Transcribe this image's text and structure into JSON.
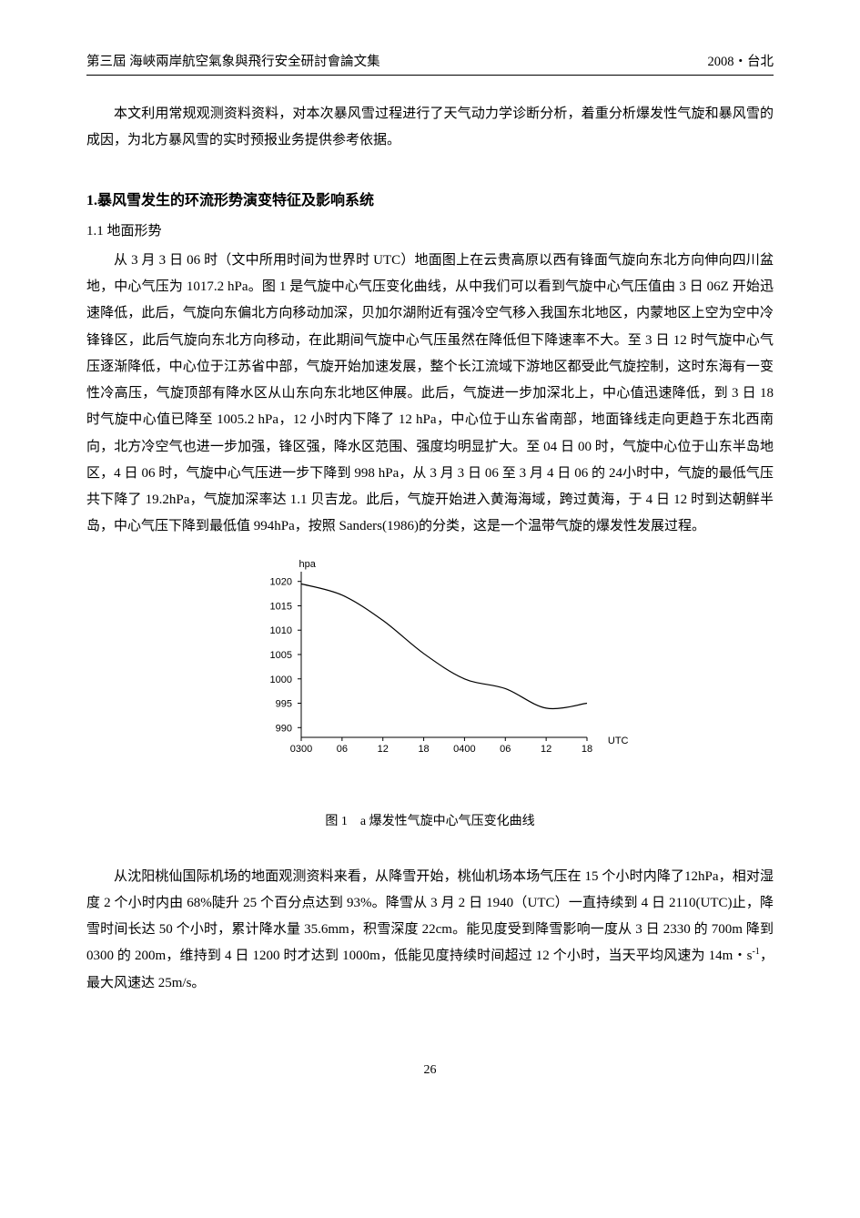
{
  "header": {
    "left": "第三屆 海峽兩岸航空氣象與飛行安全研討會論文集",
    "right": "2008・台北"
  },
  "intro": "本文利用常规观测资料资料，对本次暴风雪过程进行了天气动力学诊断分析，着重分析爆发性气旋和暴风雪的成因，为北方暴风雪的实时预报业务提供参考依据。",
  "section1": {
    "heading": "1.暴风雪发生的环流形势演变特征及影响系统",
    "sub1_label": "1.1 地面形势",
    "body1": "从 3 月 3 日 06 时（文中所用时间为世界时 UTC）地面图上在云贵高原以西有锋面气旋向东北方向伸向四川盆地，中心气压为 1017.2 hPa。图 1 是气旋中心气压变化曲线，从中我们可以看到气旋中心气压值由 3 日 06Z 开始迅速降低，此后，气旋向东偏北方向移动加深，贝加尔湖附近有强冷空气移入我国东北地区，内蒙地区上空为空中冷锋锋区，此后气旋向东北方向移动，在此期间气旋中心气压虽然在降低但下降速率不大。至 3 日 12 时气旋中心气压逐渐降低，中心位于江苏省中部，气旋开始加速发展，整个长江流域下游地区都受此气旋控制，这时东海有一变性冷高压，气旋顶部有降水区从山东向东北地区伸展。此后，气旋进一步加深北上，中心值迅速降低，到 3 日 18 时气旋中心值已降至 1005.2 hPa，12 小时内下降了 12 hPa，中心位于山东省南部，地面锋线走向更趋于东北西南向，北方冷空气也进一步加强，锋区强，降水区范围、强度均明显扩大。至 04 日 00 时，气旋中心位于山东半岛地区，4 日 06 时，气旋中心气压进一步下降到 998 hPa，从 3 月 3 日 06 至 3 月 4 日 06 的 24小时中，气旋的最低气压共下降了 19.2hPa，气旋加深率达 1.1 贝吉龙。此后，气旋开始进入黄海海域，跨过黄海，于 4 日 12 时到达朝鲜半岛，中心气压下降到最低值 994hPa，按照 Sanders(1986)的分类，这是一个温带气旋的爆发性发展过程。"
  },
  "figure1": {
    "caption": "图 1　a 爆发性气旋中心气压变化曲线",
    "y_unit": "hpa",
    "x_unit": "UTC",
    "y_ticks": [
      990,
      995,
      1000,
      1005,
      1010,
      1015,
      1020
    ],
    "x_tick_labels": [
      "0300",
      "06",
      "12",
      "18",
      "0400",
      "06",
      "12",
      "18"
    ],
    "ylim": [
      988,
      1022
    ],
    "series": {
      "points": [
        [
          0,
          1019.5
        ],
        [
          1,
          1017.2
        ],
        [
          2,
          1012
        ],
        [
          3,
          1005.2
        ],
        [
          4,
          1000
        ],
        [
          5,
          998
        ],
        [
          6,
          994
        ],
        [
          7,
          995
        ]
      ],
      "stroke": "#000000",
      "stroke_width": 1.2
    },
    "axis_color": "#000000",
    "plot_bg": "#ffffff"
  },
  "body2_parts": {
    "a": "从沈阳桃仙国际机场的地面观测资料来看，从降雪开始，桃仙机场本场气压在 15 个小时内降了12hPa，相对湿度 2 个小时内由 68%陡升 25 个百分点达到 93%。降雪从 3 月 2 日 1940（UTC）一直持续到 4 日 2110(UTC)止，降雪时间长达 50 个小时，累计降水量 35.6mm，积雪深度 22cm。能见度受到降雪影响一度从 3 日 2330 的 700m 降到 0300 的 200m，维持到 4 日 1200 时才达到 1000m，低能见度持续时间超过 12 个小时，当天平均风速为 14m・s",
    "b": "，最大风速达 25m/s。"
  },
  "page_number": "26"
}
